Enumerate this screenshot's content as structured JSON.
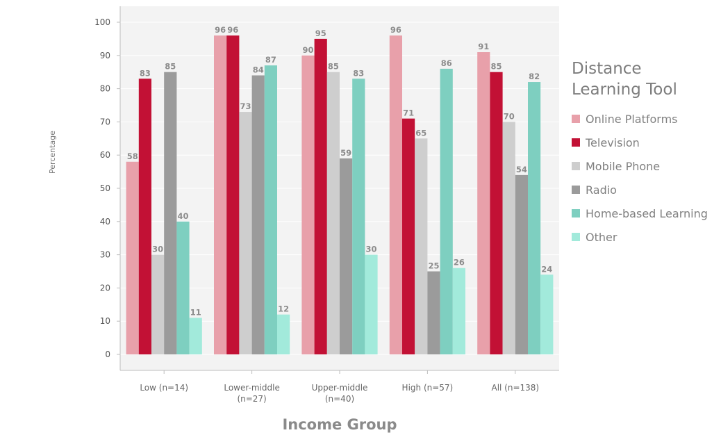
{
  "colors": {
    "plot_background": "#f3f3f3",
    "grid": "#ffffff",
    "axis": "#bdbdbd"
  },
  "chart_data": {
    "type": "bar",
    "title": "",
    "xlabel": "Income Group",
    "ylabel": "Percentage",
    "ylim": [
      0,
      100
    ],
    "yticks": [
      0,
      10,
      20,
      30,
      40,
      50,
      60,
      70,
      80,
      90,
      100
    ],
    "grid": true,
    "legend_title": [
      "Distance",
      "Learning Tool"
    ],
    "legend_position": "right",
    "categories": [
      [
        "Low (n=14)"
      ],
      [
        "Lower-middle",
        "(n=27)"
      ],
      [
        "Upper-middle",
        "(n=40)"
      ],
      [
        "High (n=57)"
      ],
      [
        "All (n=138)"
      ]
    ],
    "series": [
      {
        "name": "Online Platforms",
        "color": "#e8a0aa",
        "values": [
          58,
          96,
          90,
          96,
          91
        ]
      },
      {
        "name": "Television",
        "color": "#c21135",
        "values": [
          83,
          96,
          95,
          71,
          85
        ]
      },
      {
        "name": "Mobile Phone",
        "color": "#cecece",
        "values": [
          30,
          73,
          85,
          65,
          70
        ]
      },
      {
        "name": "Radio",
        "color": "#9b9b9b",
        "values": [
          85,
          84,
          59,
          25,
          54
        ]
      },
      {
        "name": "Home-based Learning",
        "color": "#7ecfc0",
        "values": [
          40,
          87,
          83,
          86,
          82
        ]
      },
      {
        "name": "Other",
        "color": "#a2eadb",
        "values": [
          11,
          12,
          30,
          26,
          24
        ]
      }
    ]
  }
}
